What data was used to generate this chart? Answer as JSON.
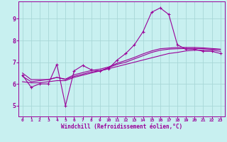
{
  "background_color": "#c8f0f0",
  "grid_color": "#a8d8d8",
  "line_color": "#990099",
  "xlim": [
    -0.5,
    23.5
  ],
  "ylim": [
    4.5,
    9.8
  ],
  "xticks": [
    0,
    1,
    2,
    3,
    4,
    5,
    6,
    7,
    8,
    9,
    10,
    11,
    12,
    13,
    14,
    15,
    16,
    17,
    18,
    19,
    20,
    21,
    22,
    23
  ],
  "yticks": [
    5,
    6,
    7,
    8,
    9
  ],
  "xlabel": "Windchill (Refroidissement éolien,°C)",
  "series_main": {
    "x": [
      0,
      1,
      2,
      3,
      4,
      5,
      6,
      7,
      8,
      9,
      10,
      11,
      12,
      13,
      14,
      15,
      16,
      17,
      18,
      19,
      20,
      21,
      22,
      23
    ],
    "y": [
      6.4,
      5.85,
      6.0,
      6.0,
      6.9,
      5.0,
      6.6,
      6.85,
      6.65,
      6.6,
      6.7,
      7.1,
      7.4,
      7.8,
      8.4,
      9.3,
      9.5,
      9.2,
      7.8,
      7.6,
      7.6,
      7.5,
      7.5,
      7.4
    ]
  },
  "series_line1": {
    "x": [
      0,
      1,
      2,
      3,
      4,
      5,
      6,
      7,
      8,
      9,
      10,
      11,
      12,
      13,
      14,
      15,
      16,
      17,
      18,
      19,
      20,
      21,
      22,
      23
    ],
    "y": [
      6.1,
      6.05,
      6.05,
      6.1,
      6.15,
      6.15,
      6.3,
      6.4,
      6.5,
      6.6,
      6.7,
      6.8,
      6.9,
      7.0,
      7.1,
      7.2,
      7.3,
      7.4,
      7.45,
      7.52,
      7.55,
      7.55,
      7.55,
      7.5
    ]
  },
  "series_line2": {
    "x": [
      0,
      1,
      2,
      3,
      4,
      5,
      6,
      7,
      8,
      9,
      10,
      11,
      12,
      13,
      14,
      15,
      16,
      17,
      18,
      19,
      20,
      21,
      22,
      23
    ],
    "y": [
      6.35,
      6.1,
      6.15,
      6.2,
      6.3,
      6.2,
      6.35,
      6.45,
      6.55,
      6.6,
      6.75,
      6.9,
      7.0,
      7.15,
      7.3,
      7.45,
      7.55,
      7.6,
      7.62,
      7.63,
      7.63,
      7.62,
      7.6,
      7.58
    ]
  },
  "series_line3": {
    "x": [
      0,
      1,
      2,
      3,
      4,
      5,
      6,
      7,
      8,
      9,
      10,
      11,
      12,
      13,
      14,
      15,
      16,
      17,
      18,
      19,
      20,
      21,
      22,
      23
    ],
    "y": [
      6.5,
      6.2,
      6.2,
      6.2,
      6.3,
      6.22,
      6.42,
      6.52,
      6.62,
      6.68,
      6.78,
      6.95,
      7.08,
      7.22,
      7.38,
      7.52,
      7.62,
      7.65,
      7.68,
      7.68,
      7.68,
      7.66,
      7.63,
      7.6
    ]
  }
}
